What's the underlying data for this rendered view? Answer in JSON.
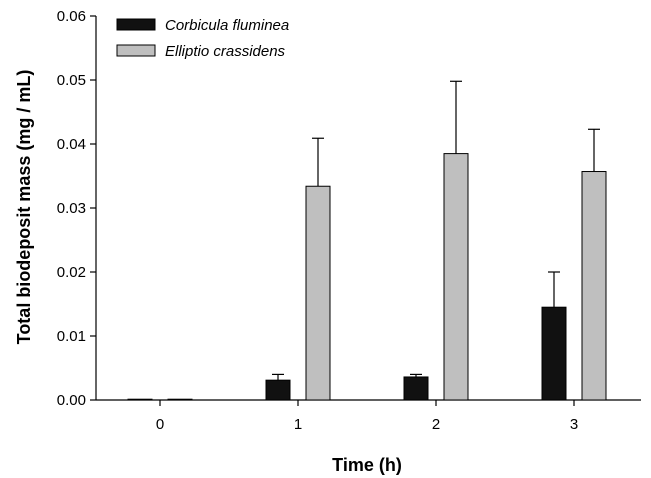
{
  "chart_data": {
    "type": "bar",
    "categories": [
      "0",
      "1",
      "2",
      "3"
    ],
    "series": [
      {
        "name": "Corbicula fluminea",
        "color": "#111111",
        "values": [
          0.0,
          0.0031,
          0.0036,
          0.0145
        ],
        "errors": [
          0.0,
          0.0009,
          0.0004,
          0.0055
        ]
      },
      {
        "name": "Elliptio crassidens",
        "color": "#bfbfbf",
        "values": [
          0.0,
          0.0334,
          0.0385,
          0.0357
        ],
        "errors": [
          0.0,
          0.0075,
          0.0113,
          0.0066
        ]
      }
    ],
    "xlabel": "Time (h)",
    "ylabel": "Total biodeposit mass (mg / mL)",
    "ylim": [
      0,
      0.06
    ],
    "yticks": [
      "0.00",
      "0.01",
      "0.02",
      "0.03",
      "0.04",
      "0.05",
      "0.06"
    ],
    "grid": false,
    "legend": "top-left",
    "error_bars": "upper"
  }
}
